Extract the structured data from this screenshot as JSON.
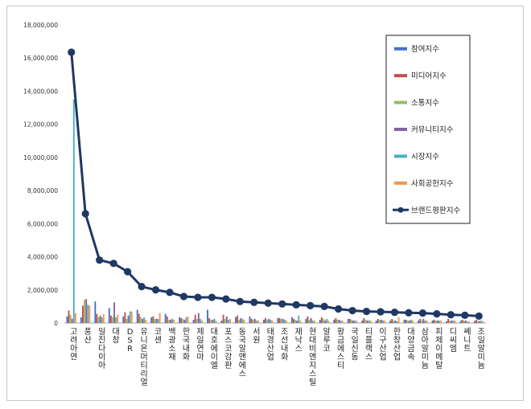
{
  "chart_data": {
    "type": "bar",
    "title": "",
    "xlabel": "",
    "ylabel": "",
    "ylim": [
      0,
      18000000
    ],
    "yticks": [
      "0",
      "2,000,000",
      "4,000,000",
      "6,000,000",
      "8,000,000",
      "10,000,000",
      "12,000,000",
      "14,000,000",
      "16,000,000",
      "18,000,000"
    ],
    "legend_position": "top-right",
    "grid": false,
    "categories": [
      "고려아연",
      "풍산",
      "일진다이아",
      "대창",
      "DSR",
      "유니온머티리얼",
      "코센",
      "백광소재",
      "한국내화",
      "제일연마",
      "대호에이엘",
      "포스코강판",
      "동국알앤에스",
      "서원",
      "태경산업",
      "조선내화",
      "제낙스",
      "현대비앤지스틸",
      "알루코",
      "황금에스티",
      "국일신동",
      "티플랙스",
      "이구산업",
      "한창산업",
      "대양금속",
      "삼아알미늄",
      "피제이메탈",
      "디씨엠",
      "쎄니트",
      "조일알미늄"
    ],
    "series": [
      {
        "name": "참여지수",
        "color": "#4472c4",
        "values": [
          400000,
          350000,
          1300000,
          900000,
          400000,
          800000,
          350000,
          550000,
          350000,
          200000,
          800000,
          150000,
          350000,
          400000,
          200000,
          300000,
          350000,
          250000,
          200000,
          200000,
          250000,
          150000,
          150000,
          150000,
          200000,
          150000,
          150000,
          100000,
          120000,
          120000
        ]
      },
      {
        "name": "미디어지수",
        "color": "#c0504d",
        "values": [
          750000,
          1050000,
          550000,
          450000,
          650000,
          550000,
          400000,
          400000,
          300000,
          500000,
          300000,
          500000,
          450000,
          250000,
          300000,
          300000,
          250000,
          400000,
          350000,
          300000,
          250000,
          300000,
          250000,
          250000,
          200000,
          250000,
          200000,
          250000,
          200000,
          200000
        ]
      },
      {
        "name": "소통지수",
        "color": "#9bbb59",
        "values": [
          500000,
          1400000,
          350000,
          350000,
          250000,
          350000,
          250000,
          200000,
          250000,
          250000,
          200000,
          250000,
          200000,
          200000,
          200000,
          250000,
          200000,
          200000,
          250000,
          200000,
          200000,
          200000,
          200000,
          150000,
          150000,
          150000,
          150000,
          150000,
          150000,
          120000
        ]
      },
      {
        "name": "커뮤니티지수",
        "color": "#8064a2",
        "values": [
          250000,
          1450000,
          450000,
          1250000,
          450000,
          250000,
          250000,
          200000,
          200000,
          600000,
          200000,
          400000,
          300000,
          250000,
          250000,
          250000,
          150000,
          300000,
          150000,
          200000,
          150000,
          150000,
          200000,
          150000,
          150000,
          250000,
          150000,
          150000,
          150000,
          120000
        ]
      },
      {
        "name": "시장지수",
        "color": "#4bacc6",
        "values": [
          13500000,
          1100000,
          350000,
          350000,
          700000,
          350000,
          250000,
          250000,
          350000,
          250000,
          250000,
          200000,
          250000,
          150000,
          200000,
          200000,
          450000,
          150000,
          250000,
          150000,
          150000,
          150000,
          150000,
          100000,
          200000,
          150000,
          150000,
          150000,
          100000,
          150000
        ]
      },
      {
        "name": "사회공헌지수",
        "color": "#f79646",
        "values": [
          600000,
          1050000,
          550000,
          500000,
          700000,
          200000,
          600000,
          200000,
          400000,
          150000,
          150000,
          250000,
          200000,
          150000,
          150000,
          150000,
          150000,
          150000,
          150000,
          150000,
          150000,
          150000,
          150000,
          350000,
          150000,
          150000,
          150000,
          150000,
          100000,
          100000
        ]
      },
      {
        "name": "브랜드평판지수",
        "type": "line",
        "color": "#1f3864",
        "values": [
          16350000,
          6600000,
          3800000,
          3600000,
          3100000,
          2200000,
          2000000,
          1850000,
          1600000,
          1550000,
          1550000,
          1450000,
          1300000,
          1250000,
          1200000,
          1150000,
          1100000,
          1050000,
          1000000,
          850000,
          750000,
          700000,
          680000,
          650000,
          620000,
          600000,
          550000,
          500000,
          470000,
          420000
        ]
      }
    ]
  }
}
